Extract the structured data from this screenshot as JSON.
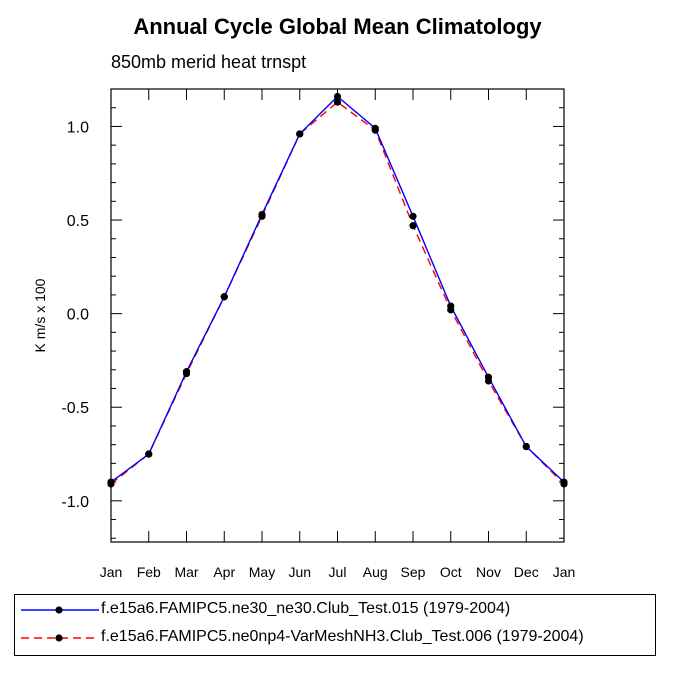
{
  "chart_data": {
    "type": "line",
    "title": "Annual Cycle Global Mean Climatology",
    "subtitle": "850mb merid heat trnspt",
    "xlabel": "",
    "ylabel": "K m/s x 100",
    "categories": [
      "Jan",
      "Feb",
      "Mar",
      "Apr",
      "May",
      "Jun",
      "Jul",
      "Aug",
      "Sep",
      "Oct",
      "Nov",
      "Dec",
      "Jan"
    ],
    "yticks": [
      -1.0,
      -0.5,
      0.0,
      0.5,
      1.0
    ],
    "ytick_labels": [
      "-1.0",
      "-0.5",
      "0.0",
      "0.5",
      "1.0"
    ],
    "ylim": [
      -1.22,
      1.2
    ],
    "series": [
      {
        "name": "f.e15a6.FAMIPC5.ne30_ne30.Club_Test.015 (1979-2004)",
        "color": "#0000ff",
        "line_style": "solid",
        "values": [
          -0.9,
          -0.75,
          -0.31,
          0.09,
          0.53,
          0.96,
          1.16,
          0.99,
          0.52,
          0.04,
          -0.34,
          -0.71,
          -0.9
        ]
      },
      {
        "name": "f.e15a6.FAMIPC5.ne0np4-VarMeshNH3.Club_Test.006 (1979-2004)",
        "color": "#ff0000",
        "line_style": "dashed",
        "values": [
          -0.91,
          -0.75,
          -0.32,
          0.09,
          0.52,
          0.96,
          1.13,
          0.98,
          0.47,
          0.02,
          -0.36,
          -0.71,
          -0.91
        ]
      }
    ]
  }
}
